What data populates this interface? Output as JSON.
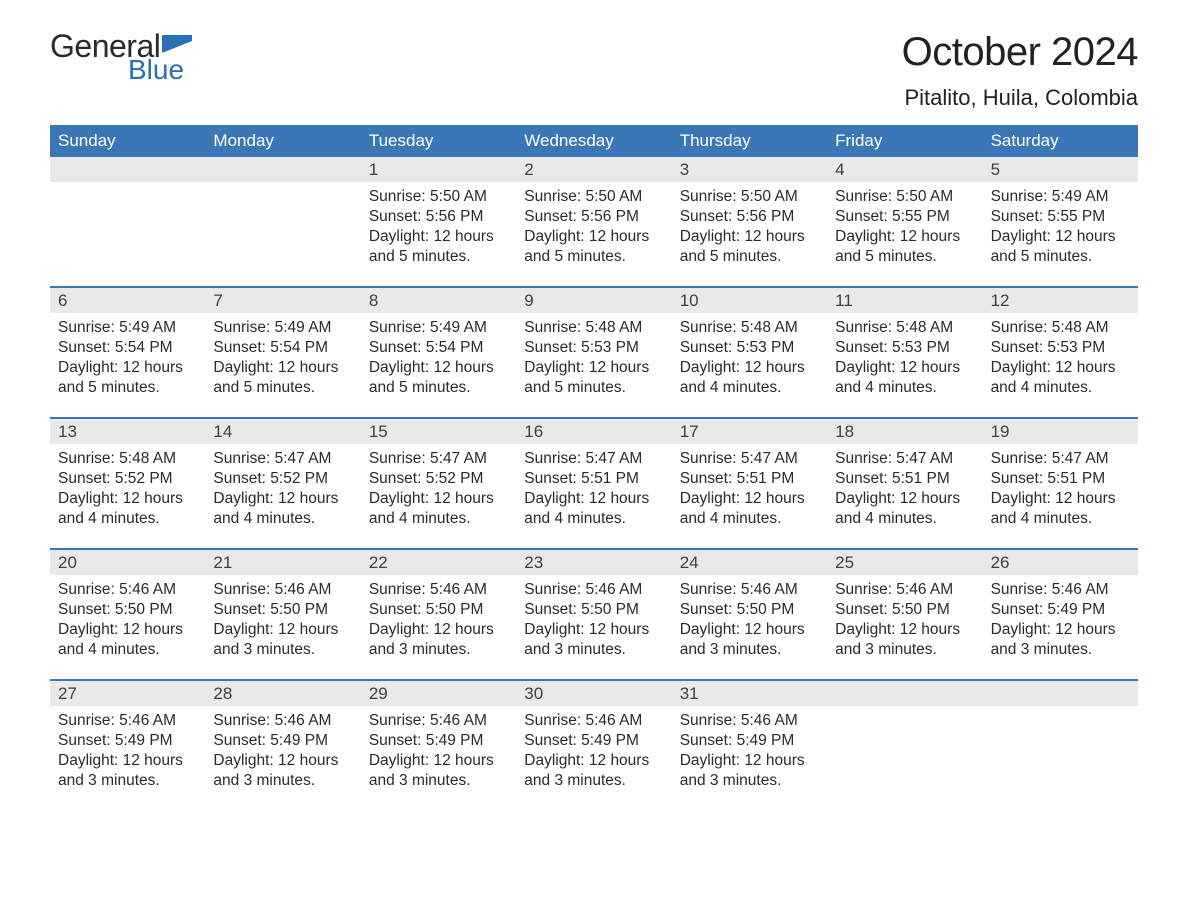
{
  "brand": {
    "word1": "General",
    "word2": "Blue"
  },
  "title": "October 2024",
  "location": "Pitalito, Huila, Colombia",
  "colors": {
    "header_bg": "#3a77b7",
    "header_text": "#ffffff",
    "daynum_bg": "#e9e9e9",
    "week_border": "#3a77b7",
    "logo_blue": "#2d6fb5",
    "body_text": "#2b2b2b",
    "background": "#ffffff"
  },
  "fonts": {
    "title_size_pt": 30,
    "location_size_pt": 17,
    "header_size_pt": 13,
    "daynum_size_pt": 13,
    "cell_size_pt": 12
  },
  "day_headers": [
    "Sunday",
    "Monday",
    "Tuesday",
    "Wednesday",
    "Thursday",
    "Friday",
    "Saturday"
  ],
  "weeks": [
    [
      null,
      null,
      {
        "n": "1",
        "sunrise": "5:50 AM",
        "sunset": "5:56 PM",
        "daylight": "12 hours and 5 minutes."
      },
      {
        "n": "2",
        "sunrise": "5:50 AM",
        "sunset": "5:56 PM",
        "daylight": "12 hours and 5 minutes."
      },
      {
        "n": "3",
        "sunrise": "5:50 AM",
        "sunset": "5:56 PM",
        "daylight": "12 hours and 5 minutes."
      },
      {
        "n": "4",
        "sunrise": "5:50 AM",
        "sunset": "5:55 PM",
        "daylight": "12 hours and 5 minutes."
      },
      {
        "n": "5",
        "sunrise": "5:49 AM",
        "sunset": "5:55 PM",
        "daylight": "12 hours and 5 minutes."
      }
    ],
    [
      {
        "n": "6",
        "sunrise": "5:49 AM",
        "sunset": "5:54 PM",
        "daylight": "12 hours and 5 minutes."
      },
      {
        "n": "7",
        "sunrise": "5:49 AM",
        "sunset": "5:54 PM",
        "daylight": "12 hours and 5 minutes."
      },
      {
        "n": "8",
        "sunrise": "5:49 AM",
        "sunset": "5:54 PM",
        "daylight": "12 hours and 5 minutes."
      },
      {
        "n": "9",
        "sunrise": "5:48 AM",
        "sunset": "5:53 PM",
        "daylight": "12 hours and 5 minutes."
      },
      {
        "n": "10",
        "sunrise": "5:48 AM",
        "sunset": "5:53 PM",
        "daylight": "12 hours and 4 minutes."
      },
      {
        "n": "11",
        "sunrise": "5:48 AM",
        "sunset": "5:53 PM",
        "daylight": "12 hours and 4 minutes."
      },
      {
        "n": "12",
        "sunrise": "5:48 AM",
        "sunset": "5:53 PM",
        "daylight": "12 hours and 4 minutes."
      }
    ],
    [
      {
        "n": "13",
        "sunrise": "5:48 AM",
        "sunset": "5:52 PM",
        "daylight": "12 hours and 4 minutes."
      },
      {
        "n": "14",
        "sunrise": "5:47 AM",
        "sunset": "5:52 PM",
        "daylight": "12 hours and 4 minutes."
      },
      {
        "n": "15",
        "sunrise": "5:47 AM",
        "sunset": "5:52 PM",
        "daylight": "12 hours and 4 minutes."
      },
      {
        "n": "16",
        "sunrise": "5:47 AM",
        "sunset": "5:51 PM",
        "daylight": "12 hours and 4 minutes."
      },
      {
        "n": "17",
        "sunrise": "5:47 AM",
        "sunset": "5:51 PM",
        "daylight": "12 hours and 4 minutes."
      },
      {
        "n": "18",
        "sunrise": "5:47 AM",
        "sunset": "5:51 PM",
        "daylight": "12 hours and 4 minutes."
      },
      {
        "n": "19",
        "sunrise": "5:47 AM",
        "sunset": "5:51 PM",
        "daylight": "12 hours and 4 minutes."
      }
    ],
    [
      {
        "n": "20",
        "sunrise": "5:46 AM",
        "sunset": "5:50 PM",
        "daylight": "12 hours and 4 minutes."
      },
      {
        "n": "21",
        "sunrise": "5:46 AM",
        "sunset": "5:50 PM",
        "daylight": "12 hours and 3 minutes."
      },
      {
        "n": "22",
        "sunrise": "5:46 AM",
        "sunset": "5:50 PM",
        "daylight": "12 hours and 3 minutes."
      },
      {
        "n": "23",
        "sunrise": "5:46 AM",
        "sunset": "5:50 PM",
        "daylight": "12 hours and 3 minutes."
      },
      {
        "n": "24",
        "sunrise": "5:46 AM",
        "sunset": "5:50 PM",
        "daylight": "12 hours and 3 minutes."
      },
      {
        "n": "25",
        "sunrise": "5:46 AM",
        "sunset": "5:50 PM",
        "daylight": "12 hours and 3 minutes."
      },
      {
        "n": "26",
        "sunrise": "5:46 AM",
        "sunset": "5:49 PM",
        "daylight": "12 hours and 3 minutes."
      }
    ],
    [
      {
        "n": "27",
        "sunrise": "5:46 AM",
        "sunset": "5:49 PM",
        "daylight": "12 hours and 3 minutes."
      },
      {
        "n": "28",
        "sunrise": "5:46 AM",
        "sunset": "5:49 PM",
        "daylight": "12 hours and 3 minutes."
      },
      {
        "n": "29",
        "sunrise": "5:46 AM",
        "sunset": "5:49 PM",
        "daylight": "12 hours and 3 minutes."
      },
      {
        "n": "30",
        "sunrise": "5:46 AM",
        "sunset": "5:49 PM",
        "daylight": "12 hours and 3 minutes."
      },
      {
        "n": "31",
        "sunrise": "5:46 AM",
        "sunset": "5:49 PM",
        "daylight": "12 hours and 3 minutes."
      },
      null,
      null
    ]
  ],
  "labels": {
    "sunrise": "Sunrise: ",
    "sunset": "Sunset: ",
    "daylight": "Daylight: "
  }
}
